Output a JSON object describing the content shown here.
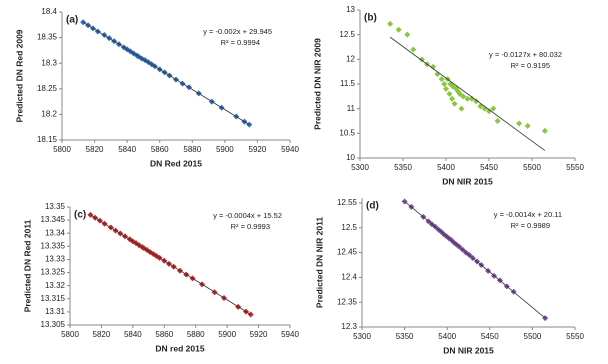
{
  "chart_data": [
    {
      "type": "scatter",
      "panel": "(a)",
      "xlabel": "DN Red 2015",
      "ylabel": "Predicted DN Red 2009",
      "equation": "y = -0.002x + 29.945",
      "r_squared": "R² = 0.9994",
      "color": "#2f6db5",
      "xlim": [
        5800,
        5940
      ],
      "xticks": [
        5800,
        5820,
        5840,
        5860,
        5880,
        5900,
        5920,
        5940
      ],
      "ylim": [
        18.15,
        18.4
      ],
      "yticks": [
        18.15,
        18.2,
        18.25,
        18.3,
        18.35,
        18.4
      ],
      "x": [
        5813,
        5816,
        5819,
        5822,
        5826,
        5829,
        5832,
        5835,
        5838,
        5840,
        5842,
        5844,
        5846,
        5847,
        5849,
        5851,
        5853,
        5855,
        5857,
        5860,
        5863,
        5866,
        5870,
        5874,
        5878,
        5884,
        5892,
        5898,
        5907,
        5912,
        5915
      ],
      "values": [
        18.38,
        18.374,
        18.368,
        18.362,
        18.355,
        18.349,
        18.343,
        18.337,
        18.331,
        18.327,
        18.323,
        18.319,
        18.315,
        18.313,
        18.309,
        18.306,
        18.302,
        18.298,
        18.294,
        18.288,
        18.282,
        18.276,
        18.268,
        18.26,
        18.253,
        18.241,
        18.225,
        18.213,
        18.196,
        18.186,
        18.18
      ],
      "trendline": {
        "x": [
          5813,
          5915
        ],
        "y": [
          18.38,
          18.18
        ]
      }
    },
    {
      "type": "scatter",
      "panel": "(b)",
      "xlabel": "DN NIR 2015",
      "ylabel": "Predicted DN NIR 2009",
      "equation": "y = -0.0127x + 80.032",
      "r_squared": "R² = 0.9195",
      "color": "#8cc640",
      "xlim": [
        5300,
        5550
      ],
      "xticks": [
        5300,
        5350,
        5400,
        5450,
        5500,
        5550
      ],
      "ylim": [
        10,
        13
      ],
      "yticks": [
        10,
        10.5,
        11,
        11.5,
        12,
        12.5,
        13
      ],
      "x": [
        5335,
        5345,
        5355,
        5362,
        5372,
        5378,
        5385,
        5390,
        5395,
        5398,
        5400,
        5402,
        5404,
        5405,
        5407,
        5408,
        5410,
        5412,
        5414,
        5416,
        5418,
        5420,
        5425,
        5430,
        5435,
        5440,
        5445,
        5450,
        5455,
        5460,
        5485,
        5495,
        5515
      ],
      "values": [
        12.72,
        12.6,
        12.5,
        12.2,
        12.0,
        11.9,
        11.85,
        11.7,
        11.6,
        11.5,
        11.4,
        11.6,
        11.3,
        11.5,
        11.2,
        11.45,
        11.1,
        11.4,
        11.35,
        11.3,
        11.0,
        11.25,
        11.2,
        11.2,
        11.15,
        11.05,
        11.0,
        10.95,
        11.0,
        10.75,
        10.7,
        10.65,
        10.55
      ],
      "trendline": {
        "x": [
          5335,
          5515
        ],
        "y": [
          12.45,
          10.15
        ]
      }
    },
    {
      "type": "scatter",
      "panel": "(c)",
      "xlabel": "DN red 2015",
      "ylabel": "Predicted DN Red 2011",
      "equation": "y = -0.0004x + 15.52",
      "r_squared": "R² = 0.9993",
      "color": "#c0282a",
      "xlim": [
        5800,
        5940
      ],
      "xticks": [
        5800,
        5820,
        5840,
        5860,
        5880,
        5900,
        5920,
        5940
      ],
      "ylim": [
        13.305,
        13.35
      ],
      "yticks": [
        13.305,
        13.31,
        13.315,
        13.32,
        13.325,
        13.33,
        13.335,
        13.34,
        13.345,
        13.35
      ],
      "x": [
        5813,
        5816,
        5819,
        5822,
        5826,
        5829,
        5832,
        5835,
        5838,
        5840,
        5842,
        5844,
        5846,
        5847,
        5849,
        5851,
        5853,
        5855,
        5857,
        5860,
        5863,
        5866,
        5870,
        5874,
        5878,
        5884,
        5892,
        5898,
        5907,
        5912,
        5915
      ],
      "values": [
        13.347,
        13.3459,
        13.3448,
        13.3436,
        13.3422,
        13.341,
        13.3399,
        13.3388,
        13.3377,
        13.3369,
        13.3362,
        13.3354,
        13.3347,
        13.3343,
        13.3336,
        13.3328,
        13.3321,
        13.3313,
        13.3306,
        13.3295,
        13.3283,
        13.3272,
        13.3257,
        13.3242,
        13.3228,
        13.3205,
        13.3175,
        13.3153,
        13.3119,
        13.3101,
        13.309
      ],
      "trendline": {
        "x": [
          5813,
          5915
        ],
        "y": [
          13.347,
          13.309
        ]
      }
    },
    {
      "type": "scatter",
      "panel": "(d)",
      "xlabel": "DN NIR 2015",
      "ylabel": "Predicted DN NIR 2011",
      "equation": "y = -0.0014x + 20.11",
      "r_squared": "R² = 0.9989",
      "color": "#7b4f9e",
      "xlim": [
        5300,
        5550
      ],
      "xticks": [
        5300,
        5350,
        5400,
        5450,
        5500,
        5550
      ],
      "ylim": [
        12.3,
        12.56
      ],
      "yticks": [
        12.3,
        12.35,
        12.4,
        12.45,
        12.5,
        12.55
      ],
      "x": [
        5350,
        5358,
        5372,
        5378,
        5382,
        5386,
        5390,
        5393,
        5396,
        5399,
        5402,
        5405,
        5408,
        5411,
        5414,
        5418,
        5422,
        5426,
        5430,
        5435,
        5440,
        5448,
        5455,
        5462,
        5470,
        5478,
        5515
      ],
      "values": [
        12.553,
        12.542,
        12.522,
        12.513,
        12.507,
        12.502,
        12.496,
        12.492,
        12.487,
        12.483,
        12.479,
        12.475,
        12.47,
        12.466,
        12.462,
        12.456,
        12.45,
        12.445,
        12.439,
        12.432,
        12.425,
        12.413,
        12.403,
        12.394,
        12.382,
        12.371,
        12.318
      ],
      "trendline": {
        "x": [
          5350,
          5515
        ],
        "y": [
          12.553,
          12.318
        ]
      }
    }
  ]
}
